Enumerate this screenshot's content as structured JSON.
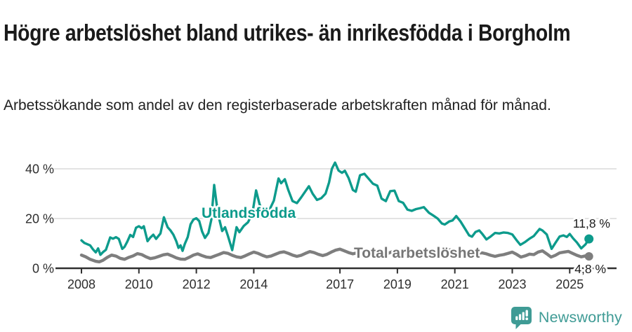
{
  "header": {
    "title": "Högre arbetslöshet bland utrikes- än inrikesfödda i Borgholm",
    "subtitle": "Arbetssökande som andel av den registerbaserade arbetskraften månad för månad."
  },
  "footer": {
    "brand": "Newsworthy"
  },
  "colors": {
    "series_utlandsfodda": "#0d9b8c",
    "series_total": "#7e7e7e",
    "series_total_label": "#767676",
    "brand_teal": "#3f9b95",
    "grid": "#dadada",
    "axis": "#2f2f2f",
    "tick_text": "#2e2e2e",
    "end_label_text": "#1c1c1c"
  },
  "chart_data": {
    "type": "line",
    "title": "Högre arbetslöshet bland utrikes- än inrikesfödda i Borgholm",
    "subtitle": "Arbetssökande som andel av den registerbaserade arbetskraften månad för månad.",
    "xlabel": "",
    "ylabel": "",
    "grid": "horizontal",
    "legend_position": "inline-annotations",
    "x_axis": {
      "range": [
        2008,
        2025.7
      ],
      "ticks": [
        2008,
        2010,
        2012,
        2014,
        2017,
        2019,
        2021,
        2023,
        2025
      ],
      "labels": [
        "2008",
        "2010",
        "2012",
        "2014",
        "2017",
        "2019",
        "2021",
        "2023",
        "2025"
      ]
    },
    "y_axis": {
      "range": [
        0,
        45
      ],
      "ticks": [
        0,
        20,
        40
      ],
      "labels": [
        "0 %",
        "20 %",
        "40 %"
      ],
      "unit": "%"
    },
    "series": [
      {
        "name": "Utlandsfödda",
        "color": "#0d9b8c",
        "end_label": "11,8 %",
        "end_value": 11.8,
        "points": [
          [
            2008.0,
            11.2
          ],
          [
            2008.1,
            10.2
          ],
          [
            2008.2,
            9.7
          ],
          [
            2008.3,
            9.2
          ],
          [
            2008.4,
            7.6
          ],
          [
            2008.5,
            6.4
          ],
          [
            2008.58,
            8.0
          ],
          [
            2008.66,
            5.4
          ],
          [
            2008.75,
            6.5
          ],
          [
            2008.85,
            7.4
          ],
          [
            2009.0,
            12.4
          ],
          [
            2009.1,
            11.9
          ],
          [
            2009.2,
            12.5
          ],
          [
            2009.3,
            11.8
          ],
          [
            2009.42,
            7.8
          ],
          [
            2009.5,
            8.6
          ],
          [
            2009.6,
            10.8
          ],
          [
            2009.7,
            13.4
          ],
          [
            2009.8,
            12.6
          ],
          [
            2009.9,
            16.3
          ],
          [
            2010.0,
            16.9
          ],
          [
            2010.1,
            16.1
          ],
          [
            2010.17,
            16.9
          ],
          [
            2010.3,
            10.9
          ],
          [
            2010.4,
            12.4
          ],
          [
            2010.5,
            13.5
          ],
          [
            2010.6,
            11.8
          ],
          [
            2010.75,
            14.0
          ],
          [
            2010.87,
            20.5
          ],
          [
            2011.0,
            16.5
          ],
          [
            2011.1,
            15.2
          ],
          [
            2011.2,
            13.5
          ],
          [
            2011.3,
            10.9
          ],
          [
            2011.38,
            8.2
          ],
          [
            2011.45,
            9.2
          ],
          [
            2011.52,
            7.0
          ],
          [
            2011.6,
            9.8
          ],
          [
            2011.7,
            12.5
          ],
          [
            2011.8,
            17.7
          ],
          [
            2011.9,
            19.6
          ],
          [
            2012.0,
            20.1
          ],
          [
            2012.1,
            19.0
          ],
          [
            2012.2,
            14.8
          ],
          [
            2012.3,
            12.2
          ],
          [
            2012.42,
            14.2
          ],
          [
            2012.52,
            19.5
          ],
          [
            2012.62,
            33.5
          ],
          [
            2012.75,
            22.0
          ],
          [
            2012.9,
            15.0
          ],
          [
            2013.0,
            16.5
          ],
          [
            2013.1,
            13.0
          ],
          [
            2013.25,
            7.3
          ],
          [
            2013.4,
            16.5
          ],
          [
            2013.5,
            14.5
          ],
          [
            2013.65,
            17.0
          ],
          [
            2013.8,
            18.5
          ],
          [
            2013.95,
            22.0
          ],
          [
            2014.08,
            31.3
          ],
          [
            2014.2,
            25.8
          ],
          [
            2014.37,
            20.9
          ],
          [
            2014.55,
            23.6
          ],
          [
            2014.7,
            27.2
          ],
          [
            2014.86,
            36.1
          ],
          [
            2014.95,
            34.2
          ],
          [
            2015.08,
            35.8
          ],
          [
            2015.2,
            31.5
          ],
          [
            2015.35,
            27.0
          ],
          [
            2015.5,
            26.2
          ],
          [
            2015.65,
            28.5
          ],
          [
            2015.8,
            31.0
          ],
          [
            2015.92,
            33.0
          ],
          [
            2016.05,
            30.0
          ],
          [
            2016.2,
            27.5
          ],
          [
            2016.35,
            28.2
          ],
          [
            2016.5,
            30.0
          ],
          [
            2016.62,
            34.5
          ],
          [
            2016.72,
            40.0
          ],
          [
            2016.83,
            42.5
          ],
          [
            2016.95,
            39.3
          ],
          [
            2017.07,
            38.4
          ],
          [
            2017.17,
            39.2
          ],
          [
            2017.3,
            36.3
          ],
          [
            2017.45,
            31.5
          ],
          [
            2017.55,
            30.8
          ],
          [
            2017.7,
            37.4
          ],
          [
            2017.85,
            38.0
          ],
          [
            2018.0,
            36.0
          ],
          [
            2018.15,
            34.0
          ],
          [
            2018.3,
            33.2
          ],
          [
            2018.45,
            28.0
          ],
          [
            2018.6,
            27.0
          ],
          [
            2018.75,
            31.0
          ],
          [
            2018.9,
            31.2
          ],
          [
            2019.05,
            27.0
          ],
          [
            2019.2,
            26.3
          ],
          [
            2019.35,
            23.6
          ],
          [
            2019.5,
            23.1
          ],
          [
            2019.65,
            23.8
          ],
          [
            2019.8,
            24.2
          ],
          [
            2019.92,
            24.6
          ],
          [
            2020.1,
            22.3
          ],
          [
            2020.25,
            21.2
          ],
          [
            2020.4,
            20.0
          ],
          [
            2020.55,
            18.0
          ],
          [
            2020.65,
            17.6
          ],
          [
            2020.8,
            18.8
          ],
          [
            2020.92,
            19.2
          ],
          [
            2021.05,
            21.0
          ],
          [
            2021.2,
            18.8
          ],
          [
            2021.35,
            16.0
          ],
          [
            2021.5,
            13.2
          ],
          [
            2021.6,
            12.7
          ],
          [
            2021.72,
            14.6
          ],
          [
            2021.85,
            15.2
          ],
          [
            2021.95,
            13.9
          ],
          [
            2022.1,
            11.6
          ],
          [
            2022.25,
            12.8
          ],
          [
            2022.4,
            14.2
          ],
          [
            2022.55,
            14.0
          ],
          [
            2022.7,
            14.4
          ],
          [
            2022.85,
            14.2
          ],
          [
            2023.0,
            13.6
          ],
          [
            2023.15,
            11.3
          ],
          [
            2023.28,
            9.4
          ],
          [
            2023.45,
            10.6
          ],
          [
            2023.6,
            11.9
          ],
          [
            2023.75,
            13.0
          ],
          [
            2023.95,
            15.8
          ],
          [
            2024.05,
            15.2
          ],
          [
            2024.2,
            13.6
          ],
          [
            2024.37,
            7.8
          ],
          [
            2024.5,
            10.2
          ],
          [
            2024.65,
            12.8
          ],
          [
            2024.78,
            13.2
          ],
          [
            2024.9,
            12.6
          ],
          [
            2025.0,
            13.8
          ],
          [
            2025.12,
            12.0
          ],
          [
            2025.25,
            10.4
          ],
          [
            2025.4,
            8.0
          ],
          [
            2025.55,
            9.6
          ],
          [
            2025.67,
            11.8
          ]
        ]
      },
      {
        "name": "Total arbetslöshet",
        "color": "#7e7e7e",
        "end_label": "4,8 %",
        "end_value": 4.8,
        "points": [
          [
            2008.0,
            5.3
          ],
          [
            2008.15,
            4.6
          ],
          [
            2008.3,
            3.6
          ],
          [
            2008.5,
            2.8
          ],
          [
            2008.62,
            2.6
          ],
          [
            2008.75,
            3.2
          ],
          [
            2008.9,
            4.4
          ],
          [
            2009.05,
            5.3
          ],
          [
            2009.2,
            4.9
          ],
          [
            2009.35,
            4.0
          ],
          [
            2009.5,
            3.6
          ],
          [
            2009.65,
            4.4
          ],
          [
            2009.8,
            5.0
          ],
          [
            2009.95,
            5.9
          ],
          [
            2010.1,
            5.5
          ],
          [
            2010.25,
            4.6
          ],
          [
            2010.4,
            3.9
          ],
          [
            2010.55,
            4.2
          ],
          [
            2010.7,
            4.8
          ],
          [
            2010.85,
            5.4
          ],
          [
            2011.0,
            5.7
          ],
          [
            2011.15,
            5.0
          ],
          [
            2011.3,
            4.2
          ],
          [
            2011.45,
            3.7
          ],
          [
            2011.6,
            3.6
          ],
          [
            2011.75,
            4.4
          ],
          [
            2011.9,
            5.3
          ],
          [
            2012.05,
            5.8
          ],
          [
            2012.2,
            5.1
          ],
          [
            2012.35,
            4.5
          ],
          [
            2012.5,
            4.3
          ],
          [
            2012.65,
            5.0
          ],
          [
            2012.8,
            5.6
          ],
          [
            2012.95,
            6.3
          ],
          [
            2013.1,
            6.0
          ],
          [
            2013.25,
            5.2
          ],
          [
            2013.4,
            4.6
          ],
          [
            2013.55,
            4.3
          ],
          [
            2013.7,
            5.0
          ],
          [
            2013.85,
            5.8
          ],
          [
            2014.0,
            6.5
          ],
          [
            2014.15,
            6.0
          ],
          [
            2014.3,
            5.2
          ],
          [
            2014.45,
            4.6
          ],
          [
            2014.6,
            4.9
          ],
          [
            2014.75,
            5.6
          ],
          [
            2014.9,
            6.3
          ],
          [
            2015.05,
            6.6
          ],
          [
            2015.2,
            6.0
          ],
          [
            2015.35,
            5.3
          ],
          [
            2015.5,
            4.8
          ],
          [
            2015.65,
            5.2
          ],
          [
            2015.8,
            6.0
          ],
          [
            2015.95,
            6.7
          ],
          [
            2016.1,
            6.3
          ],
          [
            2016.25,
            5.6
          ],
          [
            2016.4,
            5.1
          ],
          [
            2016.55,
            5.6
          ],
          [
            2016.7,
            6.5
          ],
          [
            2016.85,
            7.3
          ],
          [
            2017.0,
            7.7
          ],
          [
            2017.15,
            7.0
          ],
          [
            2017.3,
            6.3
          ],
          [
            2017.45,
            5.8
          ],
          [
            2017.6,
            6.2
          ],
          [
            2017.75,
            6.9
          ],
          [
            2017.9,
            7.4
          ],
          [
            2018.05,
            7.2
          ],
          [
            2018.2,
            6.5
          ],
          [
            2018.35,
            5.9
          ],
          [
            2018.5,
            5.5
          ],
          [
            2018.65,
            5.9
          ],
          [
            2018.8,
            6.6
          ],
          [
            2018.95,
            7.1
          ],
          [
            2019.1,
            6.8
          ],
          [
            2019.25,
            6.2
          ],
          [
            2019.4,
            5.6
          ],
          [
            2019.55,
            5.9
          ],
          [
            2019.7,
            6.5
          ],
          [
            2019.85,
            7.0
          ],
          [
            2020.0,
            7.3
          ],
          [
            2020.15,
            6.8
          ],
          [
            2020.3,
            6.4
          ],
          [
            2020.45,
            6.7
          ],
          [
            2020.6,
            7.2
          ],
          [
            2020.75,
            7.5
          ],
          [
            2020.9,
            7.3
          ],
          [
            2021.05,
            6.9
          ],
          [
            2021.2,
            6.3
          ],
          [
            2021.35,
            5.7
          ],
          [
            2021.5,
            5.2
          ],
          [
            2021.65,
            5.5
          ],
          [
            2021.8,
            6.0
          ],
          [
            2021.95,
            6.2
          ],
          [
            2022.1,
            5.8
          ],
          [
            2022.25,
            5.2
          ],
          [
            2022.4,
            4.8
          ],
          [
            2022.55,
            5.2
          ],
          [
            2022.7,
            5.5
          ],
          [
            2022.85,
            6.0
          ],
          [
            2023.0,
            6.5
          ],
          [
            2023.15,
            5.6
          ],
          [
            2023.3,
            4.5
          ],
          [
            2023.45,
            5.0
          ],
          [
            2023.6,
            5.7
          ],
          [
            2023.75,
            5.5
          ],
          [
            2023.9,
            6.5
          ],
          [
            2024.05,
            7.0
          ],
          [
            2024.2,
            5.8
          ],
          [
            2024.35,
            4.5
          ],
          [
            2024.5,
            5.2
          ],
          [
            2024.65,
            6.2
          ],
          [
            2024.8,
            6.5
          ],
          [
            2024.95,
            6.8
          ],
          [
            2025.1,
            6.0
          ],
          [
            2025.25,
            5.2
          ],
          [
            2025.4,
            4.6
          ],
          [
            2025.55,
            5.0
          ],
          [
            2025.67,
            4.8
          ]
        ]
      }
    ],
    "annotations": [
      {
        "text": "Utlandsfödda",
        "series": 0
      },
      {
        "text": "Total arbetslöshet",
        "series": 1
      },
      {
        "text": "11,8 %",
        "series": 0
      },
      {
        "text": "4,8 %",
        "series": 1
      }
    ]
  }
}
